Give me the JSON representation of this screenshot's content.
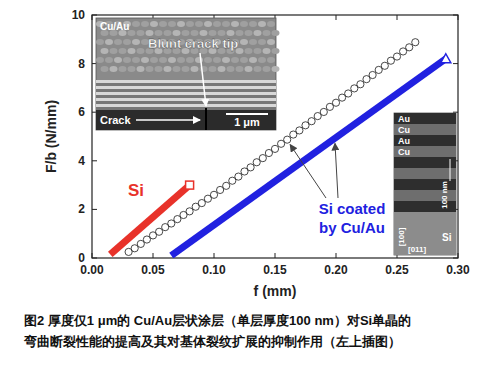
{
  "chart_data": {
    "type": "line",
    "x_label": "f (mm)",
    "y_label": "F/b (N/mm)",
    "xlim": [
      0,
      0.3
    ],
    "ylim": [
      0,
      10
    ],
    "xticks": [
      {
        "value": 0,
        "label": "0.00"
      },
      {
        "value": 0.05,
        "label": "0.05"
      },
      {
        "value": 0.1,
        "label": "0.10"
      },
      {
        "value": 0.15,
        "label": "0.15"
      },
      {
        "value": 0.2,
        "label": "0.20"
      },
      {
        "value": 0.25,
        "label": "0.25"
      },
      {
        "value": 0.3,
        "label": "0.30"
      }
    ],
    "yticks": [
      0,
      2,
      4,
      6,
      8,
      10
    ],
    "grid": false,
    "series": [
      {
        "name": "Si",
        "type": "line",
        "color": "#e8322a",
        "marker": "square",
        "x": [
          0.015,
          0.08
        ],
        "values": [
          0.15,
          3.0
        ]
      },
      {
        "type": "scatter",
        "color": "#333333",
        "marker": "circle",
        "x": [
          0.03,
          0.035,
          0.04,
          0.045,
          0.05,
          0.055,
          0.06,
          0.065,
          0.07,
          0.075,
          0.08,
          0.085,
          0.09,
          0.095,
          0.1,
          0.105,
          0.11,
          0.115,
          0.12,
          0.125,
          0.13,
          0.135,
          0.14,
          0.145,
          0.15,
          0.155,
          0.16,
          0.165,
          0.17,
          0.175,
          0.18,
          0.185,
          0.19,
          0.195,
          0.2,
          0.205,
          0.21,
          0.215,
          0.22,
          0.225,
          0.23,
          0.235,
          0.24,
          0.245,
          0.25,
          0.255,
          0.26,
          0.265
        ],
        "values": [
          0.25,
          0.4,
          0.58,
          0.76,
          0.93,
          1.08,
          1.27,
          1.42,
          1.6,
          1.77,
          1.92,
          2.11,
          2.26,
          2.44,
          2.6,
          2.8,
          2.97,
          3.18,
          3.35,
          3.56,
          3.73,
          3.94,
          4.11,
          4.32,
          4.49,
          4.7,
          4.87,
          5.08,
          5.25,
          5.46,
          5.63,
          5.84,
          6.01,
          6.22,
          6.39,
          6.6,
          6.77,
          6.98,
          7.15,
          7.36,
          7.53,
          7.74,
          7.91,
          8.12,
          8.29,
          8.5,
          8.67,
          8.88
        ]
      },
      {
        "name": "Si coated by Cu/Au",
        "type": "line",
        "color": "#2121e0",
        "marker": "triangle",
        "x": [
          0.065,
          0.29
        ],
        "values": [
          0.1,
          8.2
        ]
      }
    ],
    "insets": [
      {
        "texts": [
          "Cu/Au",
          "Blunt crack tip",
          "Crack",
          "1 μm"
        ]
      },
      {
        "texts": [
          "Au",
          "Cu",
          "Au",
          "Cu",
          "100 nm",
          "Si",
          "[100]",
          "[011]"
        ]
      }
    ],
    "caption": [
      "图2 厚度仅1 μm的 Cu/Au层状涂层（单层厚度100 nm）对Si单晶的",
      "弯曲断裂性能的提高及其对基体裂纹扩展的抑制作用（左上插图）"
    ]
  }
}
